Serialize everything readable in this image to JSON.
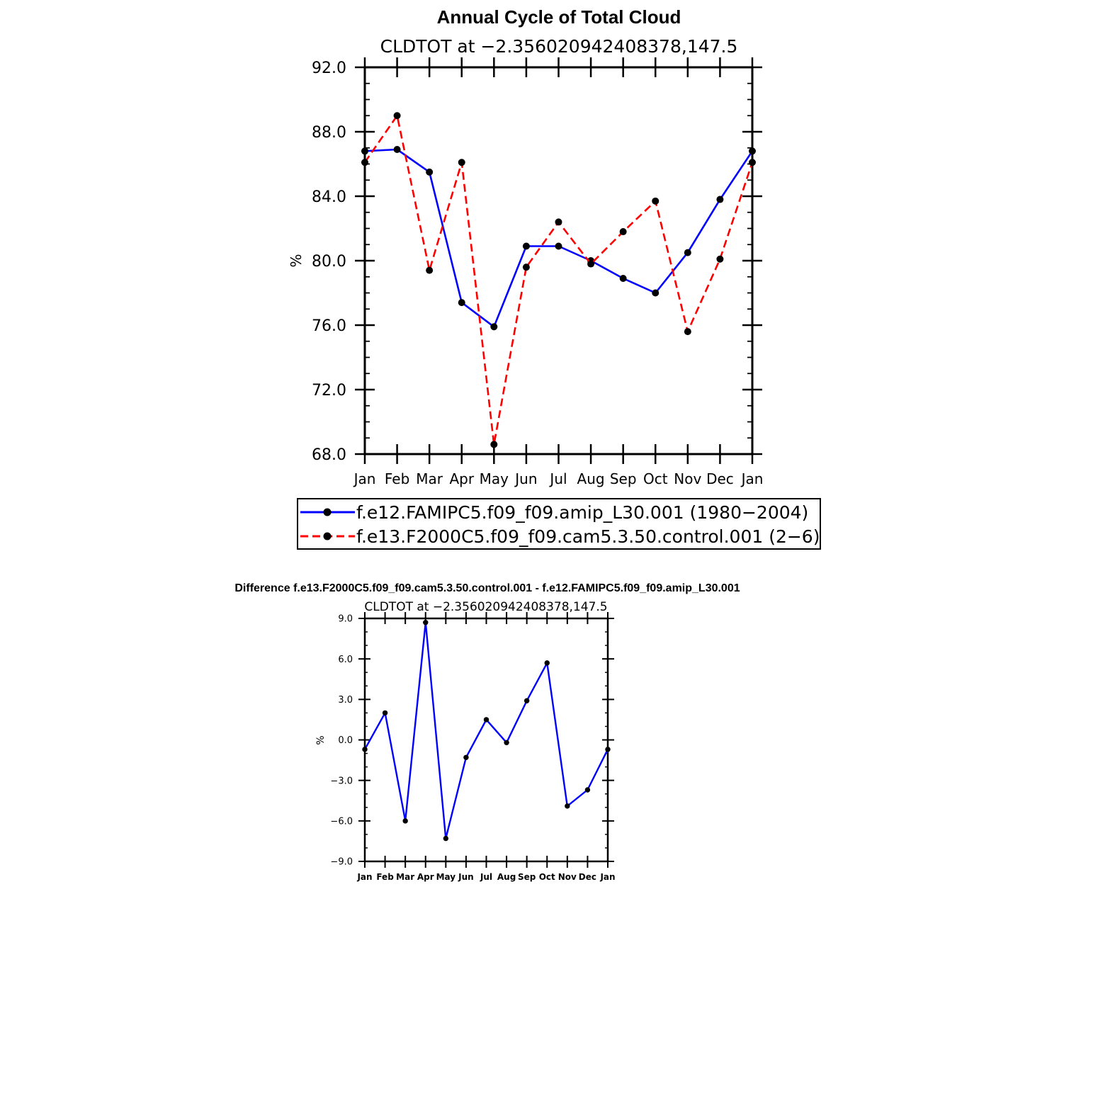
{
  "chart_data": [
    {
      "type": "line",
      "title": "Annual Cycle of Total Cloud",
      "subtitle": "CLDTOT at −2.356020942408378,147.5",
      "ylabel": "%",
      "xlabel": "",
      "ylim": [
        68,
        92
      ],
      "yticks": [
        "92.0",
        "88.0",
        "84.0",
        "80.0",
        "76.0",
        "72.0",
        "68.0"
      ],
      "ytick_values": [
        92,
        88,
        84,
        80,
        76,
        72,
        68
      ],
      "categories": [
        "Jan",
        "Feb",
        "Mar",
        "Apr",
        "May",
        "Jun",
        "Jul",
        "Aug",
        "Sep",
        "Oct",
        "Nov",
        "Dec",
        "Jan"
      ],
      "grid": false,
      "legend_position": "bottom",
      "series": [
        {
          "name": "f.e12.FAMIPC5.f09_f09.amip_L30.001 (1980−2004)",
          "color": "#0000ff",
          "dash": "solid",
          "values": [
            86.8,
            86.9,
            85.5,
            77.4,
            75.9,
            80.9,
            80.9,
            80.0,
            78.9,
            78.0,
            80.5,
            83.8,
            86.8
          ]
        },
        {
          "name": "f.e13.F2000C5.f09_f09.cam5.3.50.control.001 (2−6)",
          "color": "#ff0000",
          "dash": "dashed",
          "values": [
            86.1,
            89.0,
            79.4,
            86.1,
            68.6,
            79.6,
            82.4,
            79.8,
            81.8,
            83.7,
            75.6,
            80.1,
            86.1
          ]
        }
      ]
    },
    {
      "type": "line",
      "title": "Difference f.e13.F2000C5.f09_f09.cam5.3.50.control.001 - f.e12.FAMIPC5.f09_f09.amip_L30.001",
      "subtitle": "CLDTOT at −2.356020942408378,147.5",
      "ylabel": "%",
      "xlabel": "",
      "ylim": [
        -9,
        9
      ],
      "yticks": [
        "9.0",
        "6.0",
        "3.0",
        "0.0",
        "−3.0",
        "−6.0",
        "−9.0"
      ],
      "ytick_values": [
        9,
        6,
        3,
        0,
        -3,
        -6,
        -9
      ],
      "categories": [
        "Jan",
        "Feb",
        "Mar",
        "Apr",
        "May",
        "Jun",
        "Jul",
        "Aug",
        "Sep",
        "Oct",
        "Nov",
        "Dec",
        "Jan"
      ],
      "grid": false,
      "series": [
        {
          "name": "difference",
          "color": "#0000ff",
          "dash": "solid",
          "values": [
            -0.7,
            2.0,
            -6.0,
            8.7,
            -7.3,
            -1.3,
            1.5,
            -0.2,
            2.9,
            5.7,
            -4.9,
            -3.7,
            -0.7
          ]
        }
      ]
    }
  ]
}
